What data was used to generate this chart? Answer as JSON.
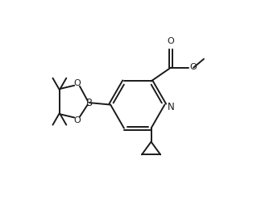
{
  "bg_color": "#ffffff",
  "line_color": "#1a1a1a",
  "line_width": 1.4,
  "figure_size": [
    3.14,
    2.5
  ],
  "dpi": 100,
  "xlim": [
    0,
    10
  ],
  "ylim": [
    0,
    8
  ]
}
